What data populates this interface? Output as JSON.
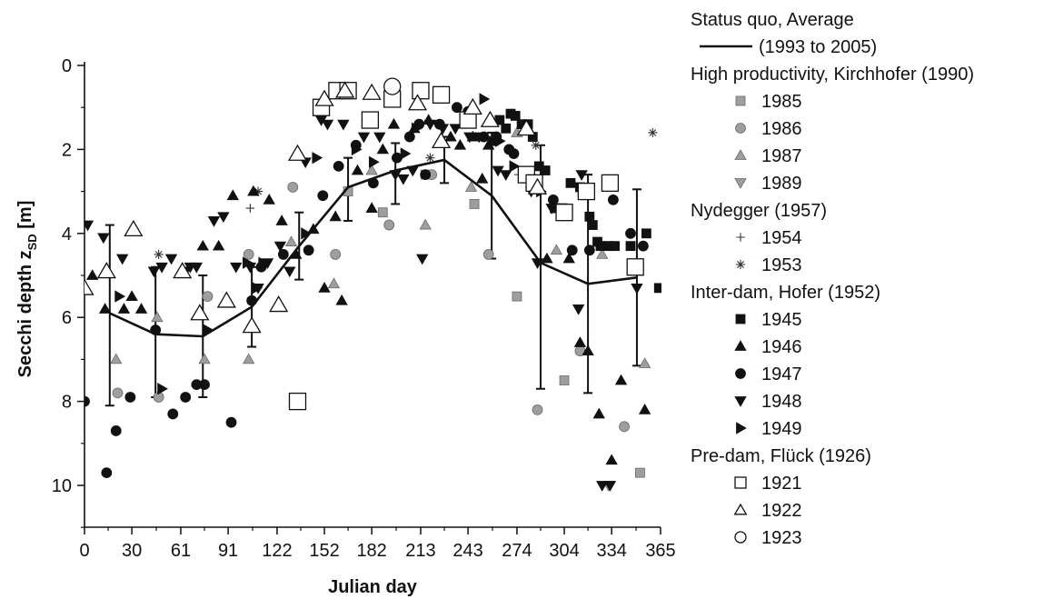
{
  "chart_data": {
    "type": "scatter",
    "xlabel": "Julian day",
    "ylabel": "Secchi depth z",
    "ylabel_sub": "SD",
    "ylabel_unit": " [m]",
    "xlim": [
      0,
      365
    ],
    "ylim": [
      0,
      11
    ],
    "y_inverted": true,
    "x_tick_labels": [
      "0",
      "30",
      "61",
      "91",
      "122",
      "152",
      "182",
      "213",
      "243",
      "274",
      "304",
      "334",
      "365"
    ],
    "x_tick_values": [
      0,
      30,
      61,
      91,
      122,
      152,
      182,
      213,
      243,
      274,
      304,
      334,
      365
    ],
    "y_tick_labels": [
      "0",
      "2",
      "4",
      "6",
      "8",
      "10"
    ],
    "y_tick_values": [
      0,
      2,
      4,
      6,
      8,
      10
    ],
    "grid": false,
    "legend_position": "right",
    "legend_groups": [
      {
        "title": "Status quo, Average",
        "entries": [
          "s_avg"
        ]
      },
      {
        "title": "High productivity, Kirchhofer (1990)",
        "entries": [
          "s1985",
          "s1986",
          "s1987",
          "s1989"
        ]
      },
      {
        "title": "Nydegger (1957)",
        "entries": [
          "s1954",
          "s1953"
        ]
      },
      {
        "title": "Inter-dam, Hofer (1952)",
        "entries": [
          "s1945",
          "s1946",
          "s1947",
          "s1948",
          "s1949"
        ]
      },
      {
        "title": "Pre-dam, Flück (1926)",
        "entries": [
          "s1921",
          "s1922",
          "s1923"
        ]
      }
    ],
    "average": {
      "id": "s_avg",
      "name": "(1993 to 2005)",
      "x": [
        16,
        45,
        75,
        106,
        136,
        167,
        197,
        228,
        258,
        289,
        319,
        350
      ],
      "y": [
        5.9,
        6.4,
        6.45,
        5.75,
        4.3,
        2.9,
        2.5,
        2.25,
        3.1,
        4.7,
        5.2,
        5.05
      ],
      "err_low": [
        3.8,
        4.8,
        5.0,
        4.8,
        3.5,
        2.2,
        1.85,
        1.7,
        1.6,
        1.9,
        2.6,
        2.95
      ],
      "err_high": [
        8.1,
        7.9,
        7.9,
        6.7,
        5.1,
        3.7,
        3.3,
        2.8,
        4.6,
        7.7,
        7.8,
        7.15
      ]
    },
    "series": [
      {
        "id": "s1985",
        "name": "1985",
        "marker": "square",
        "fill": "#9e9e9e",
        "size": "small",
        "x": [
          167,
          189,
          216,
          247,
          274,
          304,
          352
        ],
        "y": [
          3.0,
          3.5,
          2.6,
          3.3,
          5.5,
          7.5,
          9.7
        ]
      },
      {
        "id": "s1986",
        "name": "1986",
        "marker": "circle",
        "fill": "#9e9e9e",
        "size": "small",
        "x": [
          21,
          47,
          78,
          104,
          132,
          159,
          193,
          220,
          256,
          287,
          314,
          342
        ],
        "y": [
          7.8,
          7.9,
          5.5,
          4.5,
          2.9,
          4.5,
          3.8,
          2.6,
          4.5,
          8.2,
          6.8,
          8.6
        ]
      },
      {
        "id": "s1987",
        "name": "1987",
        "marker": "triangle-up",
        "fill": "#9e9e9e",
        "size": "small",
        "x": [
          20,
          46,
          76,
          104,
          131,
          158,
          182,
          216,
          245,
          274,
          299,
          328,
          355
        ],
        "y": [
          7.0,
          6.0,
          7.0,
          7.0,
          4.2,
          5.2,
          2.5,
          3.8,
          2.9,
          1.6,
          4.4,
          4.5,
          7.1
        ]
      },
      {
        "id": "s1989",
        "name": "1989",
        "marker": "triangle-down",
        "fill": "#9e9e9e",
        "size": "small",
        "x": [
          332
        ],
        "y": [
          10.0
        ]
      },
      {
        "id": "s1954",
        "name": "1954",
        "marker": "plus",
        "fill": "#333333",
        "size": "small",
        "x": [
          105,
          275
        ],
        "y": [
          3.4,
          2.6
        ]
      },
      {
        "id": "s1953",
        "name": "1953",
        "marker": "asterisk",
        "fill": "#333333",
        "size": "small",
        "x": [
          47,
          110,
          219,
          286,
          360
        ],
        "y": [
          4.5,
          3.0,
          2.2,
          1.9,
          1.6
        ]
      },
      {
        "id": "s1945",
        "name": "1945",
        "marker": "square",
        "fill": "#111111",
        "size": "small",
        "x": [
          259,
          263,
          267,
          270,
          273,
          277,
          281,
          284,
          288,
          292,
          298,
          303,
          308,
          314,
          320,
          322,
          325,
          327,
          332,
          336,
          346,
          356,
          364
        ],
        "y": [
          1.8,
          1.3,
          1.5,
          1.15,
          1.2,
          1.4,
          1.4,
          1.7,
          2.4,
          2.5,
          3.4,
          3.4,
          2.8,
          2.9,
          3.6,
          3.8,
          4.2,
          4.3,
          4.3,
          4.3,
          4.3,
          4.0,
          5.3
        ]
      },
      {
        "id": "s1946",
        "name": "1946",
        "marker": "triangle-up",
        "fill": "#111111",
        "size": "small",
        "x": [
          5,
          13,
          25,
          30,
          36,
          75,
          85,
          94,
          107,
          117,
          125,
          134,
          145,
          152,
          159,
          163,
          173,
          182,
          189,
          196,
          209,
          218,
          225,
          232,
          238,
          246,
          252,
          256,
          293,
          307,
          314,
          319,
          326,
          334,
          340,
          355
        ],
        "y": [
          5.0,
          5.8,
          5.8,
          5.5,
          5.8,
          4.3,
          4.3,
          3.1,
          3.0,
          3.2,
          3.7,
          4.5,
          3.9,
          5.3,
          3.6,
          5.6,
          2.5,
          3.4,
          2.0,
          1.4,
          1.5,
          1.3,
          1.8,
          1.7,
          1.9,
          1.7,
          2.7,
          1.9,
          4.6,
          4.6,
          6.6,
          6.8,
          8.3,
          9.4,
          7.5,
          8.2
        ]
      },
      {
        "id": "s1947",
        "name": "1947",
        "marker": "circle",
        "fill": "#111111",
        "size": "small",
        "x": [
          0,
          14,
          20,
          29,
          45,
          56,
          64,
          71,
          76,
          93,
          106,
          112,
          126,
          142,
          151,
          161,
          172,
          183,
          198,
          206,
          212,
          216,
          225,
          236,
          243,
          253,
          261,
          269,
          272,
          297,
          309,
          320,
          335,
          346,
          354
        ],
        "y": [
          8.0,
          9.7,
          8.7,
          7.9,
          6.3,
          8.3,
          7.9,
          7.6,
          7.6,
          8.5,
          5.6,
          4.8,
          4.5,
          4.4,
          3.1,
          2.4,
          1.9,
          2.8,
          2.2,
          1.7,
          1.4,
          2.6,
          1.4,
          1.0,
          1.1,
          1.7,
          1.7,
          2.0,
          2.1,
          3.2,
          4.4,
          4.4,
          3.2,
          4.0,
          4.3
        ]
      },
      {
        "id": "s1948",
        "name": "1948",
        "marker": "triangle-down",
        "fill": "#111111",
        "size": "small",
        "x": [
          2,
          12,
          24,
          44,
          49,
          55,
          64,
          67,
          71,
          82,
          88,
          96,
          105,
          110,
          116,
          124,
          130,
          140,
          150,
          154,
          164,
          177,
          187,
          197,
          202,
          208,
          214,
          219,
          227,
          235,
          244,
          250,
          262,
          267,
          283,
          287,
          296,
          313,
          315,
          328,
          333,
          350
        ],
        "y": [
          3.8,
          4.1,
          4.6,
          4.9,
          4.8,
          4.6,
          4.9,
          4.8,
          4.8,
          3.7,
          3.6,
          4.8,
          4.8,
          5.3,
          4.7,
          4.3,
          4.9,
          2.3,
          1.3,
          1.4,
          1.4,
          1.7,
          1.7,
          2.6,
          2.7,
          2.5,
          4.6,
          1.4,
          1.5,
          1.5,
          1.7,
          1.7,
          2.5,
          2.6,
          3.0,
          4.7,
          3.4,
          5.8,
          2.6,
          10.0,
          10.0,
          5.3
        ]
      },
      {
        "id": "s1949",
        "name": "1949",
        "marker": "triangle-right",
        "fill": "#111111",
        "size": "small",
        "x": [
          22,
          49,
          78,
          103,
          109,
          113,
          140,
          147,
          172,
          183,
          203,
          210,
          253,
          263,
          272,
          283,
          289
        ],
        "y": [
          5.5,
          7.7,
          6.3,
          4.7,
          5.3,
          4.7,
          4.0,
          2.2,
          2.0,
          2.3,
          2.1,
          1.5,
          0.8,
          1.8,
          2.4,
          2.8,
          3.0
        ]
      },
      {
        "id": "s1921",
        "name": "1921",
        "marker": "square-open",
        "fill": "none",
        "size": "large",
        "x": [
          135,
          150,
          160,
          167,
          181,
          195,
          213,
          226,
          243,
          280,
          285,
          304,
          318,
          333,
          349
        ],
        "y": [
          8.0,
          1.0,
          0.6,
          0.6,
          1.3,
          0.8,
          0.6,
          0.7,
          1.3,
          2.6,
          2.8,
          3.5,
          3.0,
          2.8,
          4.8
        ]
      },
      {
        "id": "s1922",
        "name": "1922",
        "marker": "triangle-up-open",
        "fill": "none",
        "size": "large",
        "x": [
          0,
          14,
          31,
          62,
          73,
          90,
          106,
          123,
          135,
          152,
          165,
          182,
          211,
          226,
          246,
          257,
          280,
          287
        ],
        "y": [
          5.3,
          4.9,
          3.9,
          4.9,
          5.9,
          5.6,
          6.2,
          5.7,
          2.1,
          0.8,
          0.6,
          0.65,
          0.9,
          1.8,
          1.0,
          1.3,
          1.5,
          2.9
        ]
      },
      {
        "id": "s1923",
        "name": "1923",
        "marker": "circle-open",
        "fill": "none",
        "size": "large",
        "x": [
          195
        ],
        "y": [
          0.5
        ]
      }
    ]
  }
}
